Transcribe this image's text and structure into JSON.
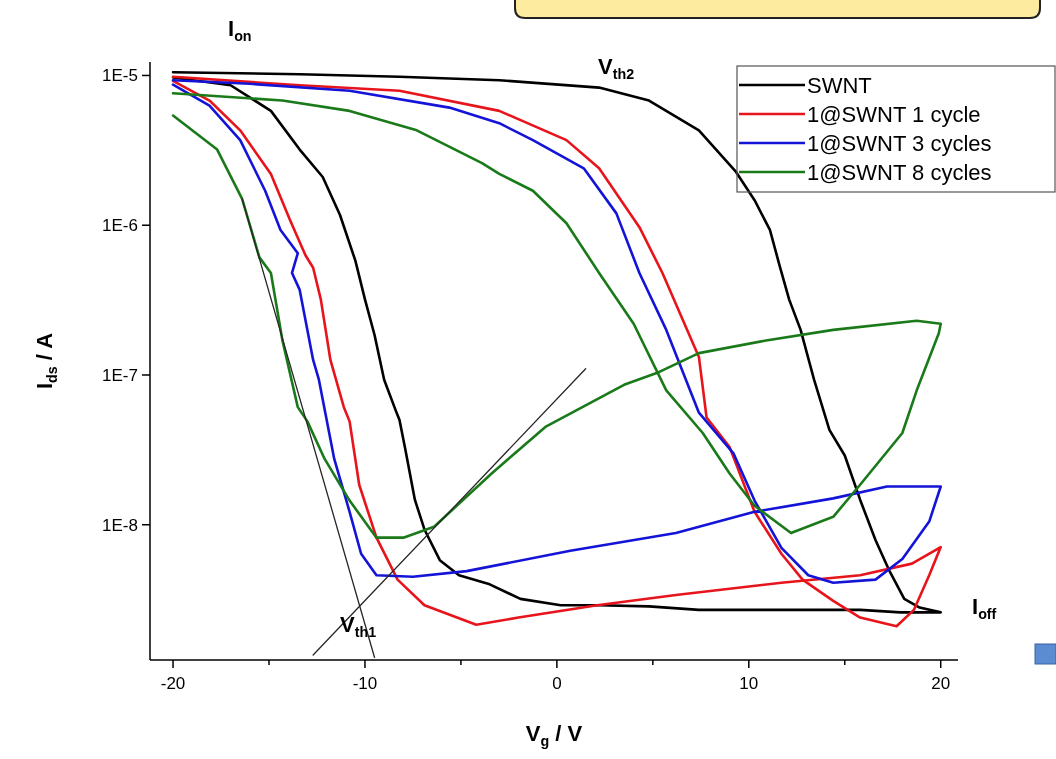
{
  "chart_data": {
    "type": "line",
    "xlabel": "V$_{g}$ / V",
    "ylabel": "I$_{ds}$ / A",
    "log": true,
    "legend": "top right",
    "xlim": [
      -21.2,
      20.9
    ],
    "ylim": [
      1.25e-09,
      1.23e-05
    ],
    "xticks": [
      -20,
      {
        "value": -15,
        "label": null
      },
      -10,
      {
        "value": -5,
        "label": null
      },
      0,
      {
        "value": 5,
        "label": null
      },
      10,
      {
        "value": 15,
        "label": null
      },
      20
    ],
    "yticks": [
      {
        "value": 1e-08,
        "label": "1E-8"
      },
      {
        "value": 1e-07,
        "label": "1E-7"
      },
      {
        "value": 1e-06,
        "label": "1E-6"
      },
      {
        "value": 1e-05,
        "label": "1E-5"
      }
    ],
    "annotations": [
      "I$_{on}$",
      "V$_{th2}$",
      "V$_{th1}$",
      "I$_{off}$"
    ],
    "series": [
      {
        "name": "SWNT",
        "color": "#000000",
        "x": [
          -20,
          -17,
          -14.9,
          -13.4,
          -12.2,
          -11.3,
          -10.5,
          -10,
          -9.5,
          -9,
          -8.4,
          -8.2,
          -7.9,
          -7.4,
          -6.9,
          -6.1,
          -5.1,
          -3.5,
          -1.9,
          0.2,
          2.2,
          4.8,
          7.4,
          12.7,
          15.8,
          17.9,
          20,
          18.9,
          18.1,
          17.3,
          16.6,
          15.8,
          15,
          14.2,
          13.4,
          12.7,
          12.1,
          11.6,
          11.1,
          10.3,
          9.3,
          7.4,
          4.8,
          2.2,
          -3,
          -8.2,
          -13.4,
          -20
        ],
        "values": [
          9.7e-06,
          8.6e-06,
          5.8e-06,
          3.2e-06,
          2.1e-06,
          1.17e-06,
          5.8e-07,
          3.2e-07,
          1.85e-07,
          9.3e-08,
          5.8e-08,
          5e-08,
          3.2e-08,
          1.47e-08,
          9.3e-09,
          5.8e-09,
          4.6e-09,
          4e-09,
          3.2e-09,
          2.9e-09,
          2.9e-09,
          2.85e-09,
          2.7e-09,
          2.7e-09,
          2.7e-09,
          2.6e-09,
          2.6e-09,
          2.8e-09,
          3.2e-09,
          5e-09,
          7.9e-09,
          1.47e-08,
          2.9e-08,
          4.3e-08,
          9.3e-08,
          2e-07,
          3.2e-07,
          5.4e-07,
          9.3e-07,
          1.47e-06,
          2.3e-06,
          4.3e-06,
          6.8e-06,
          8.3e-06,
          9.3e-06,
          9.8e-06,
          1.02e-05,
          1.05e-05
        ]
      },
      {
        "name": "1@SWNT 1 cycle",
        "color": "#e8141c",
        "x": [
          -20,
          -18.1,
          -16.5,
          -14.9,
          -13.9,
          -13.1,
          -12.7,
          -12.3,
          -11.8,
          -11.1,
          -10.8,
          -10.3,
          -9.4,
          -8.3,
          -6.9,
          -4.2,
          -2,
          2.1,
          6.2,
          11.7,
          15.8,
          18.5,
          20,
          19.4,
          18.6,
          17.7,
          15.8,
          14.4,
          12.8,
          11.7,
          10.3,
          9,
          7.8,
          7.4,
          5.5,
          4.3,
          2.2,
          0.5,
          -3,
          -8.2,
          -13.4,
          -20
        ],
        "values": [
          9.2e-06,
          6.8e-06,
          4.3e-06,
          2.2e-06,
          1.08e-06,
          6.3e-07,
          5.2e-07,
          3.2e-07,
          1.26e-07,
          6.1e-08,
          4.9e-08,
          1.85e-08,
          8.2e-09,
          4.3e-09,
          2.9e-09,
          2.15e-09,
          2.4e-09,
          2.9e-09,
          3.4e-09,
          4.1e-09,
          4.6e-09,
          5.5e-09,
          7.1e-09,
          4.6e-09,
          2.7e-09,
          2.1e-09,
          2.4e-09,
          3.1e-09,
          4.3e-09,
          6.4e-09,
          1.22e-08,
          3.3e-08,
          5.2e-08,
          1.32e-07,
          4.8e-07,
          9.7e-07,
          2.4e-06,
          3.7e-06,
          5.8e-06,
          7.9e-06,
          8.6e-06,
          9.8e-06
        ]
      },
      {
        "name": "1@SWNT 3 cycles",
        "color": "#1414d8",
        "x": [
          -20,
          -18.1,
          -16.5,
          -15.2,
          -14.4,
          -13.5,
          -13.8,
          -13.4,
          -12.7,
          -12.4,
          -11.6,
          -10.8,
          -10.2,
          -9.4,
          -7.5,
          -4.7,
          0.7,
          6.2,
          10.3,
          14.4,
          17.2,
          20,
          19.4,
          18,
          16.6,
          14.4,
          13.1,
          11.7,
          10.3,
          9.2,
          7.4,
          5.7,
          4.3,
          3.1,
          1.4,
          -1.25,
          -3,
          -5.6,
          -10.8,
          -16,
          -20
        ],
        "values": [
          8.7e-06,
          6.3e-06,
          3.7e-06,
          1.7e-06,
          9.3e-07,
          6.5e-07,
          4.8e-07,
          3.7e-07,
          1.26e-07,
          9.3e-08,
          2.75e-08,
          1.22e-08,
          6.4e-09,
          4.6e-09,
          4.5e-09,
          4.9e-09,
          6.7e-09,
          8.8e-09,
          1.22e-08,
          1.5e-08,
          1.8e-08,
          1.8e-08,
          1.05e-08,
          5.9e-09,
          4.3e-09,
          4.1e-09,
          4.6e-09,
          7e-09,
          1.45e-08,
          3e-08,
          5.6e-08,
          2e-07,
          4.8e-07,
          1.2e-06,
          2.4e-06,
          3.7e-06,
          4.8e-06,
          6.1e-06,
          7.9e-06,
          8.8e-06,
          9.3e-06
        ]
      },
      {
        "name": "1@SWNT 8 cycles",
        "color": "#1a7a1a",
        "x": [
          -20,
          -17.7,
          -16.4,
          -15.5,
          -14.9,
          -14.3,
          -13.5,
          -13,
          -12.1,
          -10.8,
          -9.4,
          -8,
          -6.4,
          -3.4,
          -0.6,
          3.5,
          5.2,
          7.4,
          10.9,
          14.4,
          18.75,
          20,
          19.9,
          18.75,
          18,
          15.8,
          14.4,
          12.2,
          10.3,
          9,
          7.6,
          5.7,
          4,
          2.2,
          0.5,
          -1.25,
          -3,
          -3.9,
          -7.3,
          -10.8,
          -14.3,
          -20
        ],
        "values": [
          5.4e-06,
          3.2e-06,
          1.5e-06,
          6.1e-07,
          4.8e-07,
          1.7e-07,
          6.1e-08,
          4.9e-08,
          2.75e-08,
          1.45e-08,
          8.2e-09,
          8.2e-09,
          9.7e-09,
          2.2e-08,
          4.5e-08,
          8.6e-08,
          1.03e-07,
          1.4e-07,
          1.7e-07,
          2e-07,
          2.3e-07,
          2.2e-07,
          1.9e-07,
          7.9e-08,
          4.1e-08,
          1.85e-08,
          1.13e-08,
          8.8e-09,
          1.34e-08,
          2.2e-08,
          4.1e-08,
          7.9e-08,
          2.2e-07,
          4.8e-07,
          1.03e-06,
          1.7e-06,
          2.2e-06,
          2.6e-06,
          4.3e-06,
          5.8e-06,
          6.8e-06,
          7.6e-06
        ]
      },
      {
        "color": "#262626",
        "x": [
          -16.4,
          -9.5
        ],
        "values": [
          1.5e-06,
          1.3e-09
        ]
      },
      {
        "color": "#262626",
        "x": [
          -12.7,
          1.5
        ],
        "values": [
          1.35e-09,
          1.1e-07
        ]
      }
    ]
  }
}
